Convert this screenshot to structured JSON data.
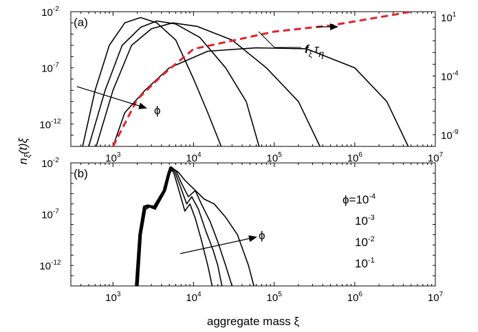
{
  "chart_data": [
    {
      "type": "line",
      "panel_label": "(a)",
      "xscale": "log",
      "yscale": "log",
      "xlim": [
        300,
        10000000
      ],
      "ylim": [
        1e-14,
        0.01
      ],
      "y2lim": [
        1e-10,
        30
      ],
      "ylabel": "n_ξ(t)ξ",
      "right_axis_ticks": [
        "10^-9",
        "10^-4",
        "10^1"
      ],
      "series": [
        {
          "style": "solid black",
          "x": [
            420,
            600,
            900,
            1400,
            2200,
            3500,
            6000,
            10000,
            15000,
            22000
          ],
          "y": [
            1e-14,
            1e-09,
            1e-05,
            0.001,
            0.003,
            0.001,
            3e-05,
            1e-08,
            1e-11,
            1e-14
          ]
        },
        {
          "style": "solid black",
          "x": [
            500,
            800,
            1300,
            2200,
            3500,
            6000,
            12000,
            25000,
            45000,
            65000
          ],
          "y": [
            1e-14,
            1e-09,
            1e-05,
            0.0004,
            0.0015,
            0.0008,
            5e-05,
            1e-07,
            1e-10,
            1e-14
          ]
        },
        {
          "style": "solid black",
          "x": [
            620,
            1000,
            1700,
            3000,
            5500,
            11000,
            30000,
            80000,
            200000,
            370000
          ],
          "y": [
            1e-14,
            1e-09,
            1e-05,
            0.0003,
            0.001,
            0.0005,
            3e-05,
            1e-07,
            1e-10,
            1e-14
          ]
        },
        {
          "style": "solid black",
          "x": [
            1000,
            1400,
            2500,
            5000,
            15000,
            60000,
            250000,
            1000000,
            2500000,
            4600000
          ],
          "y": [
            1e-14,
            1e-11,
            1e-09,
            1e-07,
            3e-06,
            6e-06,
            5e-06,
            1e-07,
            1e-10,
            1e-14
          ]
        }
      ],
      "secondary_series": {
        "name": "f_ξ τ_η",
        "style": "dashed red",
        "axis": "right",
        "x": [
          1000,
          2000,
          4000,
          10000,
          30000,
          100000,
          500000,
          2000000,
          5000000
        ],
        "y": [
          1e-10,
          1e-06,
          0.0001,
          0.02,
          0.1,
          0.6,
          2,
          10,
          30
        ]
      },
      "annotations": {
        "phi_arrow_label": "ϕ",
        "f_label_f": "f",
        "f_label_xi": "ξ",
        "f_label_tau": "τ",
        "f_label_eta": "η"
      }
    },
    {
      "type": "line",
      "panel_label": "(b)",
      "xscale": "log",
      "yscale": "log",
      "xlim": [
        300,
        10000000
      ],
      "ylim": [
        1e-14,
        0.01
      ],
      "xlabel": "aggregate mass ξ",
      "ylabel": "n_ξ(t)ξ",
      "series": [
        {
          "name": "10^-4",
          "style": "solid black",
          "x": [
            1900,
            2100,
            2400,
            2700,
            3200,
            4200,
            4800,
            5100,
            5700,
            6500,
            7800,
            9000,
            10500,
            12500,
            15000,
            17000,
            19000
          ],
          "y": [
            1e-14,
            1e-09,
            6e-07,
            8e-07,
            6e-07,
            2e-05,
            0.001,
            0.004,
            0.001,
            3e-05,
            2e-07,
            1e-06,
            4e-08,
            3e-10,
            1e-12,
            1e-14,
            1e-15
          ]
        },
        {
          "name": "10^-3",
          "style": "solid black",
          "x": [
            1950,
            2150,
            2450,
            2750,
            3250,
            4300,
            4900,
            5200,
            5900,
            6800,
            8200,
            9500,
            11500,
            14000,
            17500,
            20000,
            22500
          ],
          "y": [
            1e-14,
            1e-09,
            5e-07,
            7e-07,
            5e-07,
            2e-05,
            0.001,
            0.004,
            0.0012,
            6e-05,
            1e-06,
            5e-06,
            3e-07,
            3e-09,
            3e-11,
            1e-12,
            1e-14
          ]
        },
        {
          "name": "10^-2",
          "style": "solid black",
          "x": [
            2000,
            2200,
            2500,
            2800,
            3300,
            4400,
            5000,
            5300,
            6100,
            7100,
            8600,
            10500,
            12500,
            16000,
            20000,
            25000,
            30000
          ],
          "y": [
            1e-14,
            1e-09,
            4e-07,
            6e-07,
            4e-07,
            2e-05,
            0.001,
            0.004,
            0.0015,
            0.0001,
            5e-06,
            2e-05,
            1e-06,
            2e-08,
            2e-10,
            1e-12,
            1e-14
          ]
        },
        {
          "name": "10^-1",
          "style": "solid black",
          "x": [
            2050,
            2250,
            2550,
            2850,
            3350,
            4500,
            5100,
            5500,
            6500,
            7800,
            10000,
            13500,
            18000,
            25000,
            35000,
            48000,
            56000
          ],
          "y": [
            1e-14,
            1e-09,
            3e-07,
            5e-07,
            3e-07,
            2e-05,
            0.001,
            0.003,
            0.0012,
            0.0002,
            3e-05,
            3e-06,
            1e-06,
            5e-08,
            1e-09,
            1e-12,
            1e-14
          ]
        }
      ],
      "legend": {
        "placement": "right",
        "phi_eq": "ϕ=",
        "entries": [
          {
            "base": "10",
            "exp": "-4"
          },
          {
            "base": "10",
            "exp": "-3"
          },
          {
            "base": "10",
            "exp": "-2"
          },
          {
            "base": "10",
            "exp": "-1"
          }
        ]
      },
      "annotations": {
        "phi_arrow_label": "ϕ"
      }
    }
  ]
}
